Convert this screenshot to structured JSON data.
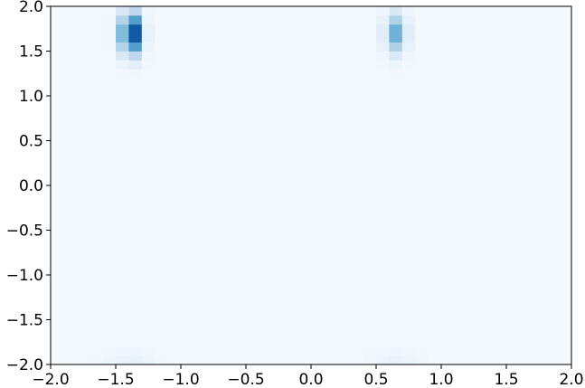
{
  "chart_data": {
    "type": "heatmap",
    "title": "",
    "xlabel": "",
    "ylabel": "",
    "xlim": [
      -2.0,
      2.0
    ],
    "ylim": [
      -2.0,
      2.0
    ],
    "grid": false,
    "colormap": "Blues",
    "colors": {
      "low": "#f7fbff",
      "high": "#08306b",
      "axis": "#000000"
    },
    "x_ticks": [
      {
        "value": -2.0,
        "label": "−2.0"
      },
      {
        "value": -1.5,
        "label": "−1.5"
      },
      {
        "value": -1.0,
        "label": "−1.0"
      },
      {
        "value": -0.5,
        "label": "−0.5"
      },
      {
        "value": 0.0,
        "label": "0.0"
      },
      {
        "value": 0.5,
        "label": "0.5"
      },
      {
        "value": 1.0,
        "label": "1.0"
      },
      {
        "value": 1.5,
        "label": "1.5"
      },
      {
        "value": 2.0,
        "label": "2.0"
      }
    ],
    "y_ticks": [
      {
        "value": -2.0,
        "label": "−2.0"
      },
      {
        "value": -1.5,
        "label": "−1.5"
      },
      {
        "value": -1.0,
        "label": "−1.0"
      },
      {
        "value": -0.5,
        "label": "−0.5"
      },
      {
        "value": 0.0,
        "label": "0.0"
      },
      {
        "value": 0.5,
        "label": "0.5"
      },
      {
        "value": 1.0,
        "label": "1.0"
      },
      {
        "value": 1.5,
        "label": "1.5"
      },
      {
        "value": 2.0,
        "label": "2.0"
      }
    ],
    "grid_size": [
      40,
      40
    ],
    "background_level": 0.015,
    "hotspots": [
      {
        "x": -1.38,
        "y": 1.7,
        "sx": 0.055,
        "sy": 0.16,
        "peak": 1.0
      },
      {
        "x": 0.65,
        "y": 1.7,
        "sx": 0.055,
        "sy": 0.15,
        "peak": 0.5
      },
      {
        "x": -1.38,
        "y": -1.95,
        "sx": 0.12,
        "sy": 0.08,
        "peak": 0.06
      },
      {
        "x": 0.65,
        "y": -1.95,
        "sx": 0.12,
        "sy": 0.08,
        "peak": 0.05
      }
    ]
  }
}
